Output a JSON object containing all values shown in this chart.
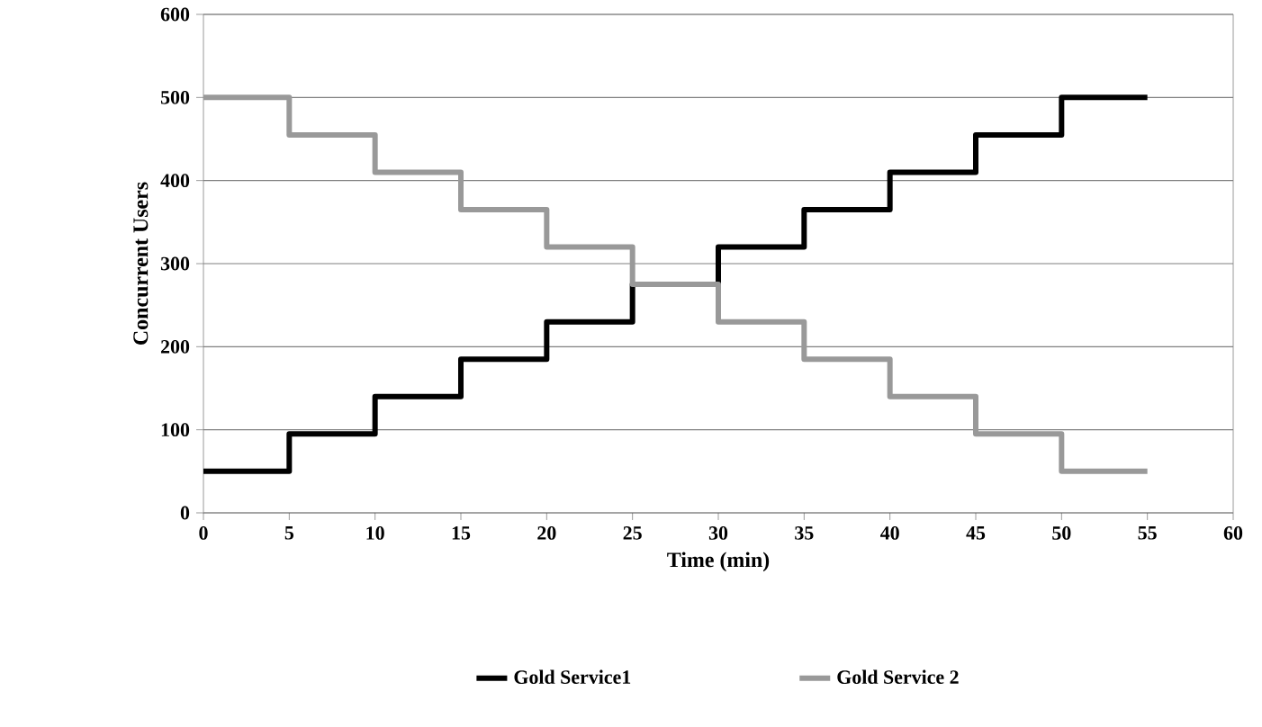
{
  "chart_data": {
    "type": "step",
    "xlabel": "Time (min)",
    "ylabel": "Concurrent Users",
    "x": [
      0,
      5,
      10,
      15,
      20,
      25,
      30,
      35,
      40,
      45,
      50,
      55
    ],
    "series": [
      {
        "name": "Gold Service1",
        "color": "#000000",
        "values": [
          50,
          95,
          140,
          185,
          230,
          275,
          320,
          365,
          410,
          455,
          500,
          500
        ]
      },
      {
        "name": "Gold Service 2",
        "color": "#999999",
        "values": [
          500,
          455,
          410,
          365,
          320,
          275,
          230,
          185,
          140,
          95,
          50,
          50
        ]
      }
    ],
    "xlim": [
      0,
      60
    ],
    "ylim": [
      0,
      600
    ],
    "xticks": [
      0,
      5,
      10,
      15,
      20,
      25,
      30,
      35,
      40,
      45,
      50,
      55,
      60
    ],
    "yticks": [
      0,
      100,
      200,
      300,
      400,
      500,
      600
    ],
    "grid": "y",
    "legend": "bottom",
    "marker": "none",
    "line_style": "solid"
  }
}
